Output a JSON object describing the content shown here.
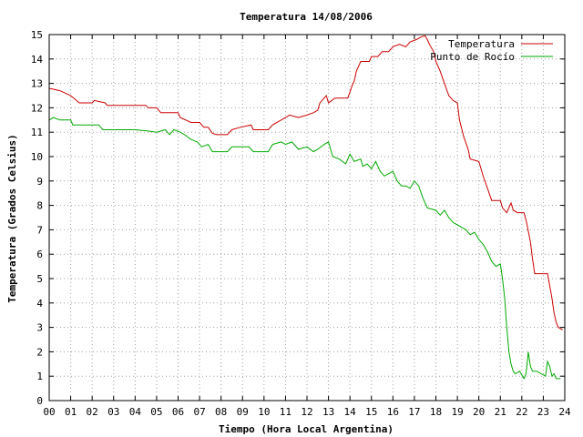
{
  "chart_data": {
    "type": "line",
    "title": "Temperatura 14/08/2006",
    "xlabel": "Tiempo (Hora Local Argentina)",
    "ylabel": "Temperatura (Grados Celsius)",
    "xlim": [
      0,
      24
    ],
    "ylim": [
      0,
      15
    ],
    "x_ticks": [
      "00",
      "01",
      "02",
      "03",
      "04",
      "05",
      "06",
      "07",
      "08",
      "09",
      "10",
      "11",
      "12",
      "13",
      "14",
      "15",
      "16",
      "17",
      "18",
      "19",
      "20",
      "21",
      "22",
      "23",
      "24"
    ],
    "y_ticks": [
      "0",
      "1",
      "2",
      "3",
      "4",
      "5",
      "6",
      "7",
      "8",
      "9",
      "10",
      "11",
      "12",
      "13",
      "14",
      "15"
    ],
    "grid": true,
    "legend_position": "top-right",
    "series": [
      {
        "name": "Temperatura",
        "color": "#cc0000",
        "points": [
          [
            0.0,
            12.8
          ],
          [
            0.5,
            12.7
          ],
          [
            1.0,
            12.5
          ],
          [
            1.4,
            12.2
          ],
          [
            2.0,
            12.2
          ],
          [
            2.1,
            12.3
          ],
          [
            2.6,
            12.2
          ],
          [
            2.7,
            12.1
          ],
          [
            3.5,
            12.1
          ],
          [
            4.5,
            12.1
          ],
          [
            4.6,
            12.0
          ],
          [
            5.0,
            12.0
          ],
          [
            5.2,
            11.8
          ],
          [
            6.0,
            11.8
          ],
          [
            6.1,
            11.6
          ],
          [
            6.6,
            11.4
          ],
          [
            7.0,
            11.4
          ],
          [
            7.2,
            11.2
          ],
          [
            7.4,
            11.2
          ],
          [
            7.6,
            10.95
          ],
          [
            7.8,
            10.9
          ],
          [
            8.3,
            10.9
          ],
          [
            8.5,
            11.1
          ],
          [
            8.9,
            11.2
          ],
          [
            9.4,
            11.3
          ],
          [
            9.5,
            11.1
          ],
          [
            10.2,
            11.1
          ],
          [
            10.4,
            11.3
          ],
          [
            10.8,
            11.5
          ],
          [
            11.2,
            11.7
          ],
          [
            11.6,
            11.6
          ],
          [
            12.0,
            11.7
          ],
          [
            12.3,
            11.8
          ],
          [
            12.5,
            11.9
          ],
          [
            12.6,
            12.2
          ],
          [
            12.7,
            12.3
          ],
          [
            12.9,
            12.5
          ],
          [
            13.0,
            12.2
          ],
          [
            13.3,
            12.4
          ],
          [
            13.9,
            12.4
          ],
          [
            14.1,
            12.9
          ],
          [
            14.2,
            13.1
          ],
          [
            14.3,
            13.5
          ],
          [
            14.5,
            13.9
          ],
          [
            14.9,
            13.9
          ],
          [
            15.0,
            14.1
          ],
          [
            15.3,
            14.1
          ],
          [
            15.5,
            14.3
          ],
          [
            15.8,
            14.3
          ],
          [
            16.0,
            14.5
          ],
          [
            16.3,
            14.6
          ],
          [
            16.6,
            14.5
          ],
          [
            16.8,
            14.7
          ],
          [
            17.1,
            14.8
          ],
          [
            17.3,
            14.9
          ],
          [
            17.5,
            14.95
          ],
          [
            17.6,
            14.8
          ],
          [
            17.7,
            14.6
          ],
          [
            17.9,
            14.3
          ],
          [
            18.0,
            13.9
          ],
          [
            18.2,
            13.5
          ],
          [
            18.4,
            13.0
          ],
          [
            18.6,
            12.5
          ],
          [
            18.8,
            12.3
          ],
          [
            19.0,
            12.2
          ],
          [
            19.1,
            11.5
          ],
          [
            19.3,
            10.8
          ],
          [
            19.5,
            10.3
          ],
          [
            19.6,
            9.9
          ],
          [
            19.8,
            9.85
          ],
          [
            20.0,
            9.8
          ],
          [
            20.2,
            9.2
          ],
          [
            20.4,
            8.7
          ],
          [
            20.6,
            8.2
          ],
          [
            21.0,
            8.2
          ],
          [
            21.1,
            7.9
          ],
          [
            21.3,
            7.7
          ],
          [
            21.5,
            8.1
          ],
          [
            21.6,
            7.8
          ],
          [
            21.8,
            7.7
          ],
          [
            22.1,
            7.7
          ],
          [
            22.2,
            7.4
          ],
          [
            22.4,
            6.5
          ],
          [
            22.5,
            5.8
          ],
          [
            22.6,
            5.2
          ],
          [
            23.2,
            5.2
          ],
          [
            23.4,
            4.2
          ],
          [
            23.5,
            3.6
          ],
          [
            23.6,
            3.2
          ],
          [
            23.7,
            3.0
          ],
          [
            23.8,
            2.95
          ],
          [
            23.9,
            2.9
          ]
        ]
      },
      {
        "name": "Punto de Rocío",
        "color": "#00aa00",
        "points": [
          [
            0.0,
            11.5
          ],
          [
            0.2,
            11.6
          ],
          [
            0.5,
            11.5
          ],
          [
            1.0,
            11.5
          ],
          [
            1.1,
            11.3
          ],
          [
            2.3,
            11.3
          ],
          [
            2.5,
            11.1
          ],
          [
            3.0,
            11.1
          ],
          [
            4.0,
            11.1
          ],
          [
            4.6,
            11.05
          ],
          [
            5.0,
            11.0
          ],
          [
            5.4,
            11.1
          ],
          [
            5.6,
            10.9
          ],
          [
            5.8,
            11.1
          ],
          [
            6.1,
            11.0
          ],
          [
            6.3,
            10.9
          ],
          [
            6.6,
            10.7
          ],
          [
            6.9,
            10.6
          ],
          [
            7.1,
            10.4
          ],
          [
            7.4,
            10.5
          ],
          [
            7.6,
            10.2
          ],
          [
            8.3,
            10.2
          ],
          [
            8.5,
            10.4
          ],
          [
            9.3,
            10.4
          ],
          [
            9.5,
            10.2
          ],
          [
            10.2,
            10.2
          ],
          [
            10.4,
            10.5
          ],
          [
            10.8,
            10.6
          ],
          [
            11.0,
            10.5
          ],
          [
            11.3,
            10.6
          ],
          [
            11.6,
            10.3
          ],
          [
            12.0,
            10.4
          ],
          [
            12.3,
            10.2
          ],
          [
            12.5,
            10.3
          ],
          [
            12.8,
            10.5
          ],
          [
            13.0,
            10.6
          ],
          [
            13.2,
            10.0
          ],
          [
            13.5,
            9.9
          ],
          [
            13.8,
            9.7
          ],
          [
            14.0,
            10.1
          ],
          [
            14.2,
            9.8
          ],
          [
            14.5,
            9.9
          ],
          [
            14.6,
            9.6
          ],
          [
            14.8,
            9.7
          ],
          [
            15.0,
            9.5
          ],
          [
            15.2,
            9.8
          ],
          [
            15.4,
            9.4
          ],
          [
            15.6,
            9.2
          ],
          [
            15.8,
            9.3
          ],
          [
            16.0,
            9.4
          ],
          [
            16.2,
            9.0
          ],
          [
            16.4,
            8.8
          ],
          [
            16.6,
            8.8
          ],
          [
            16.8,
            8.7
          ],
          [
            17.0,
            9.0
          ],
          [
            17.2,
            8.8
          ],
          [
            17.4,
            8.3
          ],
          [
            17.6,
            7.9
          ],
          [
            18.0,
            7.8
          ],
          [
            18.2,
            7.6
          ],
          [
            18.4,
            7.8
          ],
          [
            18.6,
            7.5
          ],
          [
            18.8,
            7.3
          ],
          [
            19.0,
            7.2
          ],
          [
            19.2,
            7.1
          ],
          [
            19.4,
            7.0
          ],
          [
            19.6,
            6.8
          ],
          [
            19.8,
            6.9
          ],
          [
            20.0,
            6.6
          ],
          [
            20.2,
            6.4
          ],
          [
            20.4,
            6.1
          ],
          [
            20.6,
            5.7
          ],
          [
            20.8,
            5.5
          ],
          [
            21.0,
            5.6
          ],
          [
            21.1,
            5.0
          ],
          [
            21.2,
            4.2
          ],
          [
            21.3,
            3.0
          ],
          [
            21.4,
            2.0
          ],
          [
            21.5,
            1.5
          ],
          [
            21.6,
            1.2
          ],
          [
            21.7,
            1.1
          ],
          [
            21.9,
            1.2
          ],
          [
            22.1,
            0.9
          ],
          [
            22.2,
            1.1
          ],
          [
            22.3,
            2.0
          ],
          [
            22.4,
            1.4
          ],
          [
            22.5,
            1.2
          ],
          [
            22.7,
            1.2
          ],
          [
            22.9,
            1.1
          ],
          [
            23.1,
            1.0
          ],
          [
            23.2,
            1.6
          ],
          [
            23.3,
            1.4
          ],
          [
            23.4,
            1.0
          ],
          [
            23.5,
            1.1
          ],
          [
            23.6,
            0.9
          ],
          [
            23.8,
            0.9
          ]
        ]
      }
    ]
  }
}
